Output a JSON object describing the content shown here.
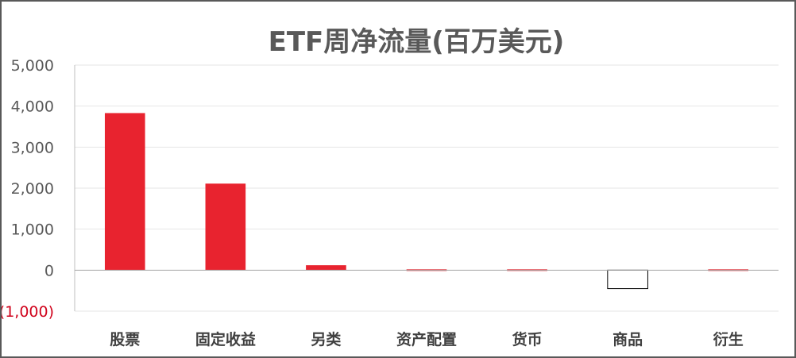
{
  "chart_data": {
    "type": "bar",
    "title": "ETF周净流量(百万美元)",
    "categories": [
      "股票",
      "固定收益",
      "另类",
      "资产配置",
      "货币",
      "商品",
      "衍生"
    ],
    "values": [
      3830,
      2110,
      120,
      20,
      20,
      -450,
      20
    ],
    "ylim": [
      -1000,
      5000
    ],
    "yticks": [
      5000,
      4000,
      3000,
      2000,
      1000,
      0,
      -1000
    ],
    "ytick_labels": [
      "5,000",
      "4,000",
      "3,000",
      "2,000",
      "1,000",
      "0",
      "(1,000)"
    ],
    "grid": true,
    "legend": "none",
    "colors": {
      "positive_bar": "#e8232f",
      "negative_bar_fill": "#ffffff",
      "negative_bar_stroke": "#000000",
      "negative_tick_label": "#d0021b",
      "title": "#595959",
      "frame": "#595959"
    }
  }
}
